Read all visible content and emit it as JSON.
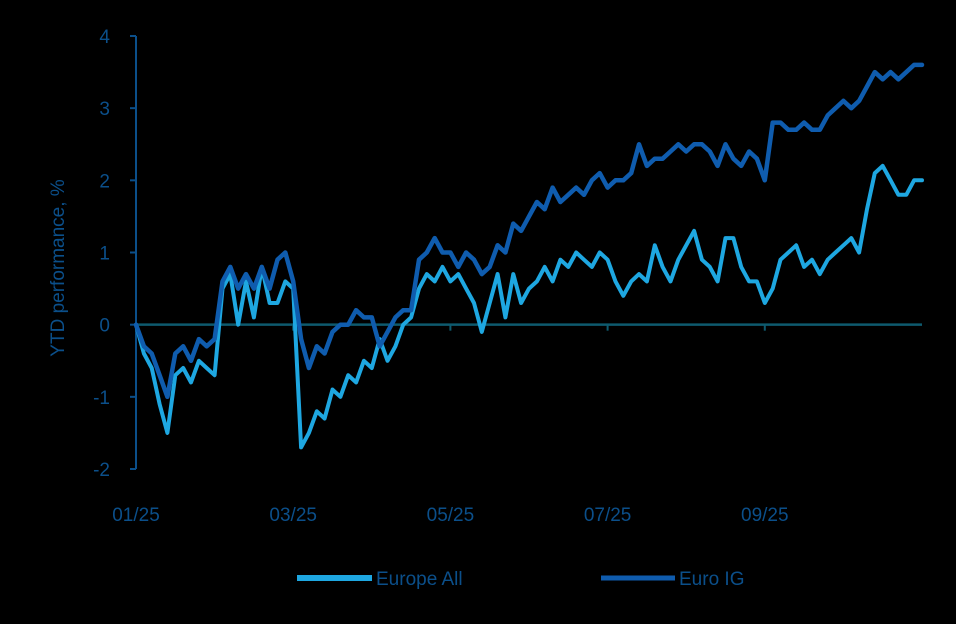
{
  "chart_data": {
    "type": "line",
    "title": "",
    "xlabel": "",
    "ylabel": "YTD performance, %",
    "ylim": [
      -2,
      4
    ],
    "yticks": [
      4,
      3,
      2,
      1,
      0,
      -1,
      -2
    ],
    "xticks": [
      "01/25",
      "03/25",
      "05/25",
      "07/25",
      "09/25"
    ],
    "grid": false,
    "legend_position": "bottom",
    "x_index_range": [
      0,
      100
    ],
    "xtick_positions": [
      0,
      20,
      40,
      60,
      80
    ],
    "series": [
      {
        "name": "Europe All",
        "color": "#1ea7e1",
        "values": [
          0.0,
          -0.4,
          -0.6,
          -1.1,
          -1.5,
          -0.7,
          -0.6,
          -0.8,
          -0.5,
          -0.6,
          -0.7,
          0.5,
          0.7,
          0.0,
          0.6,
          0.1,
          0.8,
          0.3,
          0.3,
          0.6,
          0.5,
          -1.7,
          -1.5,
          -1.2,
          -1.3,
          -0.9,
          -1.0,
          -0.7,
          -0.8,
          -0.5,
          -0.6,
          -0.2,
          -0.5,
          -0.3,
          0.0,
          0.1,
          0.5,
          0.7,
          0.6,
          0.8,
          0.6,
          0.7,
          0.5,
          0.3,
          -0.1,
          0.3,
          0.7,
          0.1,
          0.7,
          0.3,
          0.5,
          0.6,
          0.8,
          0.6,
          0.9,
          0.8,
          1.0,
          0.9,
          0.8,
          1.0,
          0.9,
          0.6,
          0.4,
          0.6,
          0.7,
          0.6,
          1.1,
          0.8,
          0.6,
          0.9,
          1.1,
          1.3,
          0.9,
          0.8,
          0.6,
          1.2,
          1.2,
          0.8,
          0.6,
          0.6,
          0.3,
          0.5,
          0.9,
          1.0,
          1.1,
          0.8,
          0.9,
          0.7,
          0.9,
          1.0,
          1.1,
          1.2,
          1.0,
          1.6,
          2.1,
          2.2,
          2.0,
          1.8,
          1.8,
          2.0,
          2.0
        ],
        "legend_label": "Europe All"
      },
      {
        "name": "Euro IG",
        "color": "#0f5cae",
        "values": [
          0.0,
          -0.3,
          -0.4,
          -0.7,
          -1.0,
          -0.4,
          -0.3,
          -0.5,
          -0.2,
          -0.3,
          -0.2,
          0.6,
          0.8,
          0.5,
          0.7,
          0.5,
          0.8,
          0.5,
          0.9,
          1.0,
          0.6,
          -0.2,
          -0.6,
          -0.3,
          -0.4,
          -0.1,
          0.0,
          0.0,
          0.2,
          0.1,
          0.1,
          -0.3,
          -0.1,
          0.1,
          0.2,
          0.2,
          0.9,
          1.0,
          1.2,
          1.0,
          1.0,
          0.8,
          1.0,
          0.9,
          0.7,
          0.8,
          1.1,
          1.0,
          1.4,
          1.3,
          1.5,
          1.7,
          1.6,
          1.9,
          1.7,
          1.8,
          1.9,
          1.8,
          2.0,
          2.1,
          1.9,
          2.0,
          2.0,
          2.1,
          2.5,
          2.2,
          2.3,
          2.3,
          2.4,
          2.5,
          2.4,
          2.5,
          2.5,
          2.4,
          2.2,
          2.5,
          2.3,
          2.2,
          2.4,
          2.3,
          2.0,
          2.8,
          2.8,
          2.7,
          2.7,
          2.8,
          2.7,
          2.7,
          2.9,
          3.0,
          3.1,
          3.0,
          3.1,
          3.3,
          3.5,
          3.4,
          3.5,
          3.4,
          3.5,
          3.6,
          3.6
        ],
        "legend_label": "Euro IG"
      }
    ]
  },
  "colors": {
    "axis": "#0b4f8a",
    "zero_line": "#0e5a6e",
    "background": "#000000"
  }
}
